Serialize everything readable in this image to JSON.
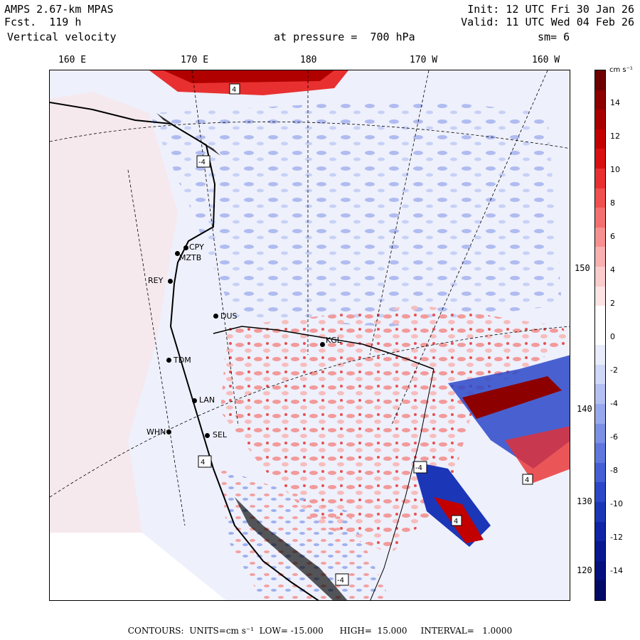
{
  "header": {
    "model": "AMPS 2.67-km MPAS",
    "forecast": "Fcst.  119 h",
    "field": "Vertical velocity",
    "init": "Init: 12 UTC Fri 30 Jan 26",
    "valid": "Valid: 11 UTC Wed 04 Feb 26",
    "level": "at pressure =  700 hPa",
    "smoothing": "sm= 6"
  },
  "longitude_labels": [
    "160 E",
    "170 E",
    "180",
    "170 W",
    "160 W"
  ],
  "latitude_labels": [
    "150 W",
    "140 W",
    "130 W",
    "120 W"
  ],
  "colorbar": {
    "units": "cm s⁻¹",
    "tick_labels": [
      "14",
      "12",
      "10",
      "8",
      "6",
      "4",
      "2",
      "0",
      "-2",
      "-4",
      "-6",
      "-8",
      "-10",
      "-12",
      "-14"
    ],
    "colors": [
      "#6e0000",
      "#8c0000",
      "#a80000",
      "#c20000",
      "#d81010",
      "#e83030",
      "#f05050",
      "#f47070",
      "#f79090",
      "#f9b0b0",
      "#fbcccc",
      "#fde4e4",
      "#ffffff",
      "#ffffff",
      "#e8ecfb",
      "#d0d8f7",
      "#b4c0f2",
      "#98a8ec",
      "#7c90e6",
      "#6078de",
      "#4460d4",
      "#2c48c8",
      "#1c36b8",
      "#1024a6",
      "#081892",
      "#04107e",
      "#020a68"
    ]
  },
  "stations": [
    {
      "id": "CPY"
    },
    {
      "id": "MZTB"
    },
    {
      "id": "REY"
    },
    {
      "id": "DUS"
    },
    {
      "id": "KGL"
    },
    {
      "id": "TDM"
    },
    {
      "id": "LAN"
    },
    {
      "id": "WHN"
    },
    {
      "id": "SEL"
    }
  ],
  "box_markers": [
    "4",
    "-4",
    "4",
    "-4",
    "4",
    "4",
    "-4"
  ],
  "footer": {
    "text": "CONTOURS:  UNITS=cm s⁻¹  LOW= -15.000      HIGH=  15.000     INTERVAL=   1.0000"
  }
}
